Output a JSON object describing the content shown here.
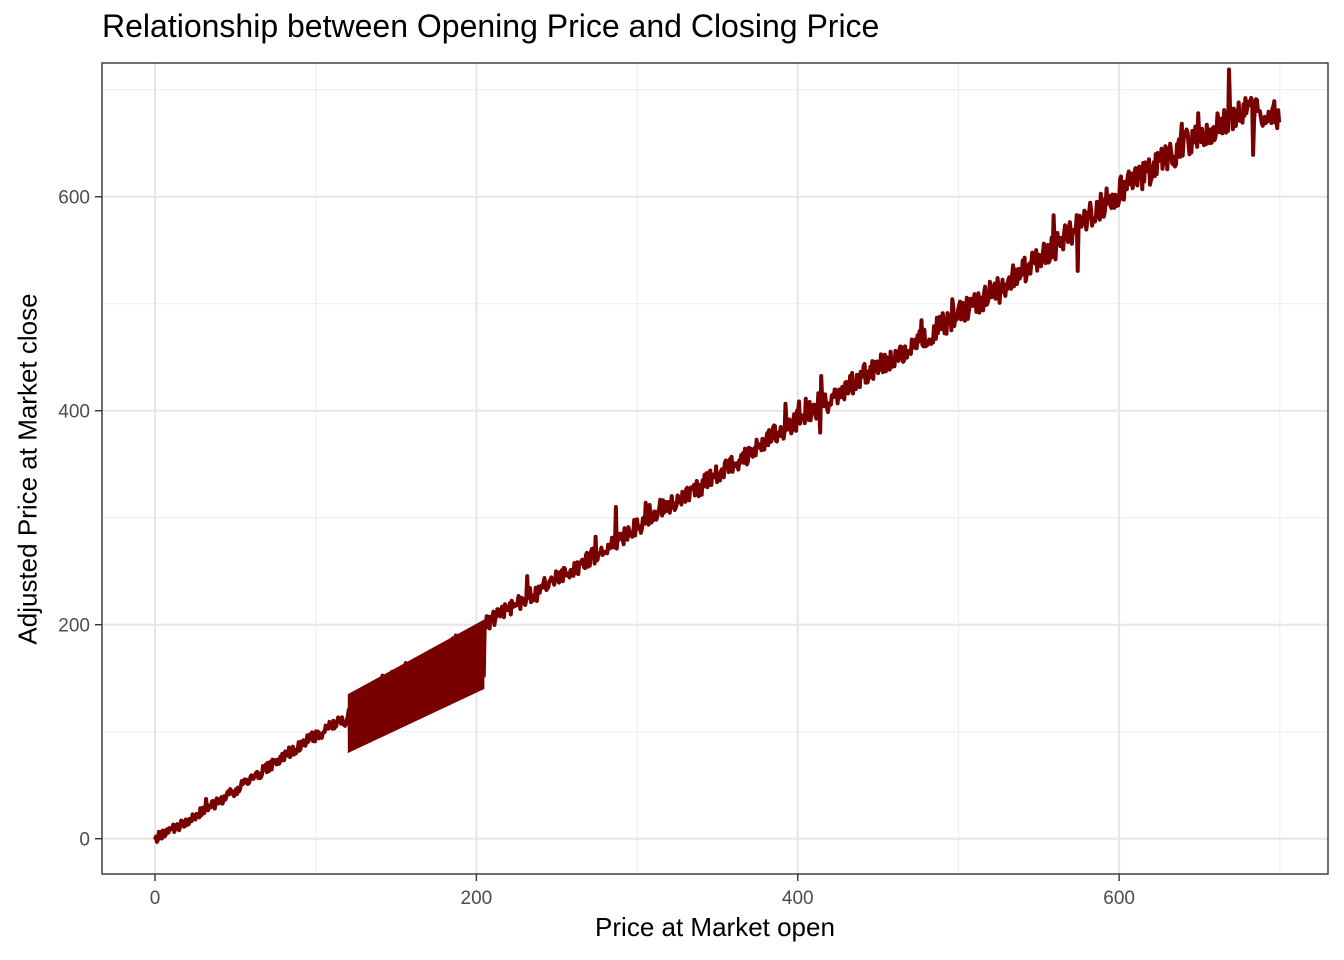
{
  "chart_data": {
    "type": "line",
    "title": "Relationship between Opening Price and Closing Price",
    "xlabel": "Price at Market open",
    "ylabel": "Adjusted Price at Market close",
    "xlim": [
      -33,
      730
    ],
    "ylim": [
      -33,
      725
    ],
    "x_ticks": [
      0,
      200,
      400,
      600
    ],
    "y_ticks": [
      0,
      200,
      400,
      600
    ],
    "x_minor": [
      100,
      300,
      500,
      700
    ],
    "y_minor": [
      100,
      300,
      500,
      700
    ],
    "grid": true,
    "series": [
      {
        "color": "#780000",
        "style": "thick noisy line tracing an approximately linear relation with a dense band between open 120 and 205",
        "points": [
          [
            0,
            1
          ],
          [
            5,
            4
          ],
          [
            10,
            8
          ],
          [
            15,
            12
          ],
          [
            20,
            16
          ],
          [
            25,
            21
          ],
          [
            30,
            26
          ],
          [
            40,
            35
          ],
          [
            50,
            45
          ],
          [
            60,
            56
          ],
          [
            70,
            66
          ],
          [
            80,
            77
          ],
          [
            90,
            87
          ],
          [
            100,
            96
          ],
          [
            110,
            105
          ],
          [
            120,
            112
          ],
          [
            140,
            125
          ],
          [
            160,
            140
          ],
          [
            180,
            158
          ],
          [
            200,
            175
          ],
          [
            205,
            200
          ],
          [
            220,
            215
          ],
          [
            240,
            234
          ],
          [
            260,
            252
          ],
          [
            280,
            270
          ],
          [
            300,
            292
          ],
          [
            320,
            312
          ],
          [
            340,
            330
          ],
          [
            360,
            350
          ],
          [
            380,
            372
          ],
          [
            400,
            392
          ],
          [
            420,
            410
          ],
          [
            440,
            432
          ],
          [
            460,
            450
          ],
          [
            480,
            470
          ],
          [
            500,
            490
          ],
          [
            520,
            510
          ],
          [
            540,
            530
          ],
          [
            560,
            552
          ],
          [
            580,
            580
          ],
          [
            600,
            605
          ],
          [
            620,
            625
          ],
          [
            640,
            648
          ],
          [
            660,
            665
          ],
          [
            680,
            680
          ],
          [
            700,
            675
          ]
        ],
        "band": {
          "x_start": 120,
          "x_end": 205,
          "lower_start": 80,
          "upper_start": 135,
          "lower_end": 140,
          "upper_end": 205
        }
      }
    ]
  }
}
